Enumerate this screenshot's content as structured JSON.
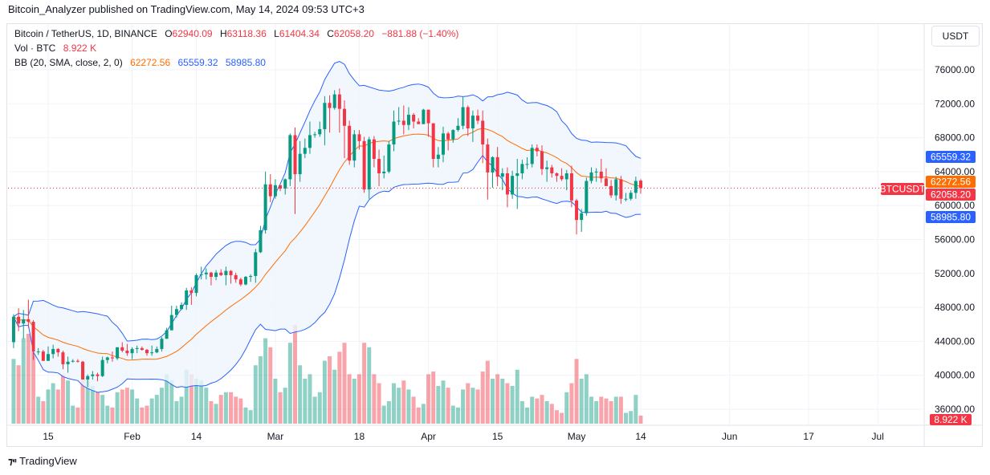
{
  "header": {
    "published": "Bitcoin_Analyzer published on TradingView.com, May 14, 2024 09:53 UTC+3"
  },
  "legend": {
    "symbol": "Bitcoin / TetherUS, 1D, BINANCE",
    "o_label": "O",
    "o": "62940.09",
    "h_label": "H",
    "h": "63118.36",
    "l_label": "L",
    "l": "61404.34",
    "c_label": "C",
    "c": "62058.20",
    "change": "−881.88 (−1.40%)",
    "vol_label": "Vol · BTC",
    "vol": "8.922 K",
    "bb_label": "BB (20, SMA, close, 2, 0)",
    "bb_basis": "62272.56",
    "bb_upper": "65559.32",
    "bb_lower": "58985.80"
  },
  "currency_button": "USDT",
  "tags": {
    "upper": "65559.32",
    "basis": "62272.56",
    "symbol": "BTCUSDT",
    "last": "62058.20",
    "lower": "58985.80",
    "volume": "8.922 K"
  },
  "footer": {
    "logo_text": "TradingView"
  },
  "colors": {
    "up": "#089981",
    "down": "#f23645",
    "bb_basis": "#ff6d00",
    "bb_band": "#2962ff",
    "bb_fill": "#eef5fc"
  },
  "chart_data": {
    "type": "candlestick",
    "y_ticks": [
      "76000.00",
      "72000.00",
      "68000.00",
      "64000.00",
      "60000.00",
      "56000.00",
      "52000.00",
      "48000.00",
      "44000.00",
      "40000.00",
      "36000.00"
    ],
    "ylim": [
      34800,
      78500
    ],
    "x_ticks": [
      {
        "label": "15",
        "date": "2024-01-15"
      },
      {
        "label": "Feb",
        "date": "2024-02-01"
      },
      {
        "label": "14",
        "date": "2024-02-14"
      },
      {
        "label": "Mar",
        "date": "2024-03-01"
      },
      {
        "label": "18",
        "date": "2024-03-18"
      },
      {
        "label": "Apr",
        "date": "2024-04-01"
      },
      {
        "label": "15",
        "date": "2024-04-15"
      },
      {
        "label": "May",
        "date": "2024-05-01"
      },
      {
        "label": "14",
        "date": "2024-05-14"
      },
      {
        "label": "Jun",
        "date": "2024-06-01"
      },
      {
        "label": "17",
        "date": "2024-06-17"
      },
      {
        "label": "Jul",
        "date": "2024-07-01"
      }
    ],
    "x_range": [
      "2024-01-07",
      "2024-07-09"
    ],
    "volume_unit": "K BTC",
    "indicator": {
      "name": "BB",
      "length": 20,
      "mult": 2
    },
    "columns": [
      "date",
      "open",
      "high",
      "low",
      "close",
      "volume"
    ],
    "candles": [
      [
        "2024-01-08",
        43900,
        47200,
        43200,
        46900,
        72
      ],
      [
        "2024-01-09",
        46900,
        47900,
        45200,
        46100,
        65
      ],
      [
        "2024-01-10",
        46100,
        47700,
        44300,
        46600,
        95
      ],
      [
        "2024-01-11",
        46600,
        48900,
        45600,
        46300,
        100
      ],
      [
        "2024-01-12",
        46300,
        46500,
        41800,
        42800,
        80
      ],
      [
        "2024-01-13",
        42800,
        43200,
        42400,
        42800,
        30
      ],
      [
        "2024-01-14",
        42800,
        43000,
        41700,
        41700,
        25
      ],
      [
        "2024-01-15",
        41700,
        43400,
        41700,
        42500,
        38
      ],
      [
        "2024-01-16",
        42500,
        43600,
        42000,
        43100,
        45
      ],
      [
        "2024-01-17",
        43100,
        43200,
        42200,
        42700,
        38
      ],
      [
        "2024-01-18",
        42700,
        42900,
        40700,
        41300,
        55
      ],
      [
        "2024-01-19",
        41300,
        42200,
        40300,
        41600,
        48
      ],
      [
        "2024-01-20",
        41600,
        41900,
        41500,
        41700,
        20
      ],
      [
        "2024-01-21",
        41700,
        41900,
        41500,
        41600,
        18
      ],
      [
        "2024-01-22",
        41600,
        41700,
        39500,
        39500,
        55
      ],
      [
        "2024-01-23",
        39500,
        40100,
        38600,
        39900,
        48
      ],
      [
        "2024-01-24",
        39900,
        40500,
        39500,
        40100,
        42
      ],
      [
        "2024-01-25",
        40100,
        40300,
        39300,
        39900,
        35
      ],
      [
        "2024-01-26",
        39900,
        42200,
        39800,
        41800,
        32
      ],
      [
        "2024-01-27",
        41800,
        42200,
        41400,
        42100,
        20
      ],
      [
        "2024-01-28",
        42100,
        42800,
        41600,
        42000,
        18
      ],
      [
        "2024-01-29",
        42000,
        43300,
        41800,
        43300,
        35
      ],
      [
        "2024-01-30",
        43300,
        43900,
        42700,
        42900,
        38
      ],
      [
        "2024-01-31",
        42900,
        43700,
        42300,
        42600,
        40
      ],
      [
        "2024-02-01",
        42600,
        43300,
        41900,
        43100,
        38
      ],
      [
        "2024-02-02",
        43100,
        43500,
        42600,
        43200,
        28
      ],
      [
        "2024-02-03",
        43200,
        43400,
        42900,
        43000,
        18
      ],
      [
        "2024-02-04",
        43000,
        43100,
        42300,
        42600,
        20
      ],
      [
        "2024-02-05",
        42600,
        43500,
        42300,
        42700,
        28
      ],
      [
        "2024-02-06",
        42700,
        43400,
        42600,
        43100,
        32
      ],
      [
        "2024-02-07",
        43100,
        44500,
        42800,
        44300,
        40
      ],
      [
        "2024-02-08",
        44300,
        45600,
        44300,
        45300,
        55
      ],
      [
        "2024-02-09",
        45300,
        48200,
        45300,
        47100,
        48
      ],
      [
        "2024-02-10",
        47100,
        48200,
        46800,
        47800,
        25
      ],
      [
        "2024-02-11",
        47800,
        48600,
        47700,
        48300,
        30
      ],
      [
        "2024-02-12",
        48300,
        50300,
        47700,
        50000,
        60
      ],
      [
        "2024-02-13",
        50000,
        50400,
        48300,
        49700,
        55
      ],
      [
        "2024-02-14",
        49700,
        52000,
        49300,
        51800,
        50
      ],
      [
        "2024-02-15",
        51800,
        52800,
        51300,
        51900,
        48
      ],
      [
        "2024-02-16",
        51900,
        52600,
        51300,
        52100,
        40
      ],
      [
        "2024-02-17",
        52100,
        52200,
        50600,
        51600,
        25
      ],
      [
        "2024-02-18",
        51600,
        52400,
        51200,
        52100,
        22
      ],
      [
        "2024-02-19",
        52100,
        52500,
        51700,
        51800,
        32
      ],
      [
        "2024-02-20",
        51800,
        52800,
        50600,
        52300,
        35
      ],
      [
        "2024-02-21",
        52300,
        52400,
        50800,
        51800,
        35
      ],
      [
        "2024-02-22",
        51800,
        52100,
        50900,
        51300,
        30
      ],
      [
        "2024-02-23",
        51300,
        51500,
        50500,
        50700,
        28
      ],
      [
        "2024-02-24",
        50700,
        51700,
        50600,
        51600,
        18
      ],
      [
        "2024-02-25",
        51600,
        51900,
        51000,
        51700,
        15
      ],
      [
        "2024-02-26",
        51700,
        54900,
        50900,
        54500,
        65
      ],
      [
        "2024-02-27",
        54500,
        57600,
        54400,
        57100,
        75
      ],
      [
        "2024-02-28",
        57100,
        64000,
        56700,
        62500,
        95
      ],
      [
        "2024-02-29",
        62500,
        63700,
        60400,
        61100,
        85
      ],
      [
        "2024-03-01",
        61100,
        63100,
        60800,
        62400,
        50
      ],
      [
        "2024-03-02",
        62400,
        62400,
        61700,
        62000,
        35
      ],
      [
        "2024-03-03",
        62000,
        63200,
        61300,
        63100,
        40
      ],
      [
        "2024-03-04",
        63100,
        68500,
        62300,
        68300,
        90
      ],
      [
        "2024-03-05",
        68300,
        69200,
        59000,
        63700,
        110
      ],
      [
        "2024-03-06",
        63700,
        67600,
        62800,
        66100,
        65
      ],
      [
        "2024-03-07",
        66100,
        67900,
        65600,
        66800,
        50
      ],
      [
        "2024-03-08",
        66800,
        69900,
        66100,
        68300,
        55
      ],
      [
        "2024-03-09",
        68300,
        68700,
        68000,
        68400,
        30
      ],
      [
        "2024-03-10",
        68400,
        69900,
        68100,
        69000,
        35
      ],
      [
        "2024-03-11",
        69000,
        72900,
        67100,
        72100,
        70
      ],
      [
        "2024-03-12",
        72100,
        73000,
        68600,
        71500,
        75
      ],
      [
        "2024-03-13",
        71500,
        73600,
        71300,
        73100,
        60
      ],
      [
        "2024-03-14",
        73100,
        73800,
        68600,
        71400,
        80
      ],
      [
        "2024-03-15",
        71400,
        72400,
        65600,
        69400,
        90
      ],
      [
        "2024-03-16",
        69400,
        70000,
        64800,
        65300,
        55
      ],
      [
        "2024-03-17",
        65300,
        68900,
        64500,
        68400,
        50
      ],
      [
        "2024-03-18",
        68400,
        68900,
        66600,
        67600,
        55
      ],
      [
        "2024-03-19",
        67600,
        68100,
        61500,
        61900,
        90
      ],
      [
        "2024-03-20",
        61900,
        68100,
        60800,
        67800,
        85
      ],
      [
        "2024-03-21",
        67800,
        68200,
        64500,
        65500,
        55
      ],
      [
        "2024-03-22",
        65500,
        66600,
        62300,
        63800,
        45
      ],
      [
        "2024-03-23",
        63800,
        65900,
        63200,
        64000,
        20
      ],
      [
        "2024-03-24",
        64000,
        67600,
        63800,
        67200,
        25
      ],
      [
        "2024-03-25",
        67200,
        71200,
        66400,
        69900,
        45
      ],
      [
        "2024-03-26",
        69900,
        71600,
        69500,
        70000,
        40
      ],
      [
        "2024-03-27",
        70000,
        71800,
        68400,
        69500,
        48
      ],
      [
        "2024-03-28",
        69500,
        71600,
        68900,
        70700,
        38
      ],
      [
        "2024-03-29",
        70700,
        70900,
        69100,
        69900,
        30
      ],
      [
        "2024-03-30",
        69900,
        70300,
        69600,
        69600,
        18
      ],
      [
        "2024-03-31",
        69600,
        71400,
        69600,
        71300,
        22
      ],
      [
        "2024-04-01",
        71300,
        71300,
        68100,
        69700,
        55
      ],
      [
        "2024-04-02",
        69700,
        69700,
        64500,
        65500,
        58
      ],
      [
        "2024-04-03",
        65500,
        66900,
        64500,
        66000,
        42
      ],
      [
        "2024-04-04",
        66000,
        69300,
        65100,
        68500,
        48
      ],
      [
        "2024-04-05",
        68500,
        68700,
        66500,
        67800,
        40
      ],
      [
        "2024-04-06",
        67800,
        69000,
        67400,
        68900,
        20
      ],
      [
        "2024-04-07",
        68900,
        70300,
        68700,
        69400,
        18
      ],
      [
        "2024-04-08",
        69400,
        72800,
        69000,
        71600,
        38
      ],
      [
        "2024-04-09",
        71600,
        71800,
        68200,
        69100,
        45
      ],
      [
        "2024-04-10",
        69100,
        71200,
        67500,
        70600,
        40
      ],
      [
        "2024-04-11",
        70600,
        71300,
        69600,
        70000,
        38
      ],
      [
        "2024-04-12",
        70000,
        71200,
        65000,
        67200,
        58
      ],
      [
        "2024-04-13",
        67200,
        67900,
        60700,
        63900,
        70
      ],
      [
        "2024-04-14",
        63900,
        65800,
        62100,
        65700,
        50
      ],
      [
        "2024-04-15",
        65700,
        66900,
        62300,
        63400,
        55
      ],
      [
        "2024-04-16",
        63400,
        64400,
        61800,
        63800,
        50
      ],
      [
        "2024-04-17",
        63800,
        64500,
        59800,
        61300,
        45
      ],
      [
        "2024-04-18",
        61300,
        64100,
        60800,
        63500,
        42
      ],
      [
        "2024-04-19",
        63500,
        65500,
        59600,
        63800,
        60
      ],
      [
        "2024-04-20",
        63800,
        65400,
        63100,
        64900,
        25
      ],
      [
        "2024-04-21",
        64900,
        65700,
        64300,
        64900,
        18
      ],
      [
        "2024-04-22",
        64900,
        67200,
        64500,
        66800,
        30
      ],
      [
        "2024-04-23",
        66800,
        67200,
        65800,
        66400,
        28
      ],
      [
        "2024-04-24",
        66400,
        67100,
        63600,
        64300,
        32
      ],
      [
        "2024-04-25",
        64300,
        65300,
        62800,
        64500,
        25
      ],
      [
        "2024-04-26",
        64500,
        64800,
        63300,
        63800,
        22
      ],
      [
        "2024-04-27",
        63800,
        63900,
        62800,
        63500,
        15
      ],
      [
        "2024-04-28",
        63500,
        64400,
        62900,
        63100,
        12
      ],
      [
        "2024-04-29",
        63100,
        64200,
        61800,
        63800,
        35
      ],
      [
        "2024-04-30",
        63800,
        64700,
        59800,
        60600,
        45
      ],
      [
        "2024-05-01",
        60600,
        60800,
        56600,
        58300,
        72
      ],
      [
        "2024-05-02",
        58300,
        59600,
        56900,
        59100,
        50
      ],
      [
        "2024-05-03",
        59100,
        63300,
        58800,
        62900,
        55
      ],
      [
        "2024-05-04",
        62900,
        64500,
        62600,
        63900,
        30
      ],
      [
        "2024-05-05",
        63900,
        64400,
        62800,
        64000,
        25
      ],
      [
        "2024-05-06",
        64000,
        65500,
        62700,
        63200,
        30
      ],
      [
        "2024-05-07",
        63200,
        64400,
        62300,
        62300,
        28
      ],
      [
        "2024-05-08",
        62300,
        63000,
        60900,
        61200,
        25
      ],
      [
        "2024-05-09",
        61200,
        63400,
        60600,
        63100,
        30
      ],
      [
        "2024-05-10",
        63100,
        63500,
        60200,
        60800,
        30
      ],
      [
        "2024-05-11",
        60800,
        61500,
        60500,
        60800,
        12
      ],
      [
        "2024-05-12",
        60800,
        61800,
        60600,
        61500,
        14
      ],
      [
        "2024-05-13",
        61500,
        63400,
        60800,
        62900,
        32
      ],
      [
        "2024-05-14",
        62940.09,
        63118.36,
        61404.34,
        62058.2,
        8.922
      ]
    ]
  }
}
